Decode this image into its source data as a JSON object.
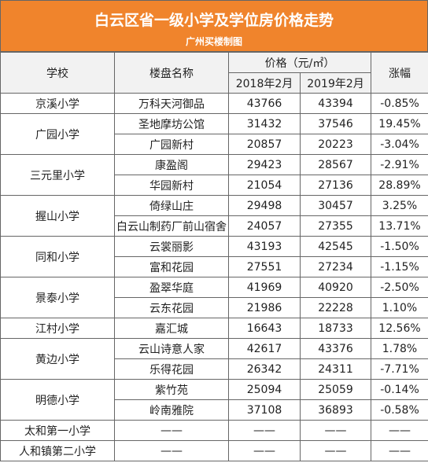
{
  "header": {
    "title": "白云区省一级小学及学位房价格走势",
    "subtitle": "广州买楼制图"
  },
  "table": {
    "columns": {
      "school": "学校",
      "estate": "楼盘名称",
      "price": "价格（元/㎡）",
      "year1": "2018年2月",
      "year2": "2019年2月",
      "change": "涨幅"
    },
    "schools": [
      {
        "name": "京溪小学",
        "estates": [
          {
            "name": "万科天河御品",
            "p1": 43766,
            "p2": 43394,
            "change": "-0.85%"
          }
        ]
      },
      {
        "name": "广园小学",
        "estates": [
          {
            "name": "圣地摩坊公馆",
            "p1": 31432,
            "p2": 37546,
            "change": "19.45%"
          },
          {
            "name": "广园新村",
            "p1": 20857,
            "p2": 20223,
            "change": "-3.04%"
          }
        ]
      },
      {
        "name": "三元里小学",
        "estates": [
          {
            "name": "康盈阁",
            "p1": 29423,
            "p2": 28567,
            "change": "-2.91%"
          },
          {
            "name": "华园新村",
            "p1": 21054,
            "p2": 27136,
            "change": "28.89%"
          }
        ]
      },
      {
        "name": "握山小学",
        "estates": [
          {
            "name": "倚绿山庄",
            "p1": 29498,
            "p2": 30457,
            "change": "3.25%"
          },
          {
            "name": "白云山制药厂前山宿舍",
            "p1": 24057,
            "p2": 27355,
            "change": "13.71%"
          }
        ]
      },
      {
        "name": "同和小学",
        "estates": [
          {
            "name": "云裳丽影",
            "p1": 43193,
            "p2": 42545,
            "change": "-1.50%"
          },
          {
            "name": "富和花园",
            "p1": 27551,
            "p2": 27234,
            "change": "-1.15%"
          }
        ]
      },
      {
        "name": "景泰小学",
        "estates": [
          {
            "name": "盈翠华庭",
            "p1": 41969,
            "p2": 40920,
            "change": "-2.50%"
          },
          {
            "name": "云东花园",
            "p1": 21986,
            "p2": 22228,
            "change": "1.10%"
          }
        ]
      },
      {
        "name": "江村小学",
        "estates": [
          {
            "name": "嘉汇城",
            "p1": 16643,
            "p2": 18733,
            "change": "12.56%"
          }
        ]
      },
      {
        "name": "黄边小学",
        "estates": [
          {
            "name": "云山诗意人家",
            "p1": 42617,
            "p2": 43376,
            "change": "1.78%"
          },
          {
            "name": "乐得花园",
            "p1": 26342,
            "p2": 24311,
            "change": "-7.71%"
          }
        ]
      },
      {
        "name": "明德小学",
        "estates": [
          {
            "name": "紫竹苑",
            "p1": 25094,
            "p2": 25059,
            "change": "-0.14%"
          },
          {
            "name": "岭南雅院",
            "p1": 37108,
            "p2": 36893,
            "change": "-0.58%"
          }
        ]
      },
      {
        "name": "太和第一小学",
        "estates": [
          {
            "name": "——",
            "p1": "——",
            "p2": "——",
            "change": "——"
          }
        ]
      },
      {
        "name": "人和镇第二小学",
        "estates": [
          {
            "name": "——",
            "p1": "——",
            "p2": "——",
            "change": "——"
          }
        ]
      }
    ]
  }
}
